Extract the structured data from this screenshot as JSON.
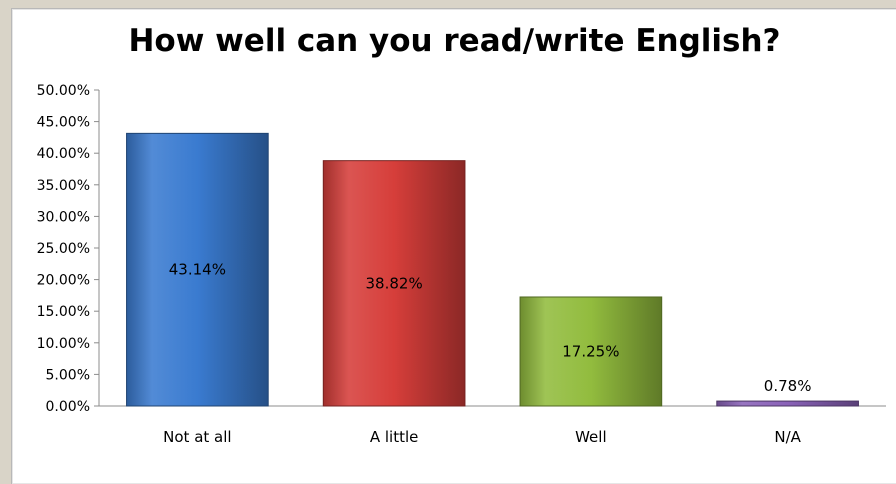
{
  "chart_data": {
    "type": "bar",
    "title": "How well can you read/write English?",
    "categories": [
      "Not at all",
      "A little",
      "Well",
      "N/A"
    ],
    "values": [
      43.14,
      38.82,
      17.25,
      0.78
    ],
    "data_labels": [
      "43.14%",
      "38.82%",
      "17.25%",
      "0.78%"
    ],
    "colors": [
      "#3a7bd0",
      "#d63e3a",
      "#92bc3e",
      "#8a62b8"
    ],
    "ylim": [
      0,
      50
    ],
    "yticks": [
      0,
      5,
      10,
      15,
      20,
      25,
      30,
      35,
      40,
      45,
      50
    ],
    "ytick_labels": [
      "0.00%",
      "5.00%",
      "10.00%",
      "15.00%",
      "20.00%",
      "25.00%",
      "30.00%",
      "35.00%",
      "40.00%",
      "45.00%",
      "50.00%"
    ],
    "xlabel": "",
    "ylabel": "",
    "grid": false,
    "legend": "none"
  }
}
